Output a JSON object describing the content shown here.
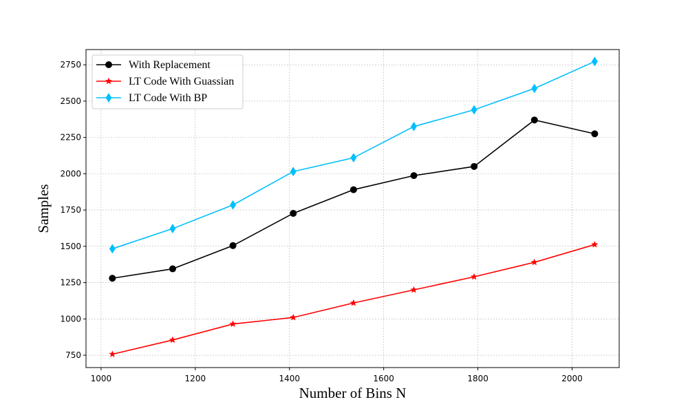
{
  "chart_data": {
    "type": "line",
    "xlabel": "Number of Bins N",
    "ylabel": "Samples",
    "xlim": [
      968,
      2100
    ],
    "ylim": [
      665,
      2855
    ],
    "x_ticks": [
      1000,
      1200,
      1400,
      1600,
      1800,
      2000
    ],
    "y_ticks": [
      750,
      1000,
      1250,
      1500,
      1750,
      2000,
      2250,
      2500,
      2750
    ],
    "grid": true,
    "legend_position": "top-left",
    "x": [
      1024,
      1152,
      1280,
      1408,
      1536,
      1664,
      1792,
      1920,
      2048
    ],
    "series": [
      {
        "name": "With Replacement",
        "color": "#000000",
        "marker": "circle",
        "values": [
          1280,
          1345,
          1505,
          1727,
          1890,
          1987,
          2050,
          2370,
          2275
        ]
      },
      {
        "name": "LT Code With Guassian",
        "color": "#ff0000",
        "marker": "star",
        "values": [
          757,
          855,
          965,
          1010,
          1110,
          1200,
          1290,
          1390,
          1512
        ]
      },
      {
        "name": "LT Code With BP",
        "color": "#00bfff",
        "marker": "diamond",
        "values": [
          1483,
          1622,
          1785,
          2015,
          2110,
          2325,
          2440,
          2587,
          2773
        ]
      }
    ]
  }
}
